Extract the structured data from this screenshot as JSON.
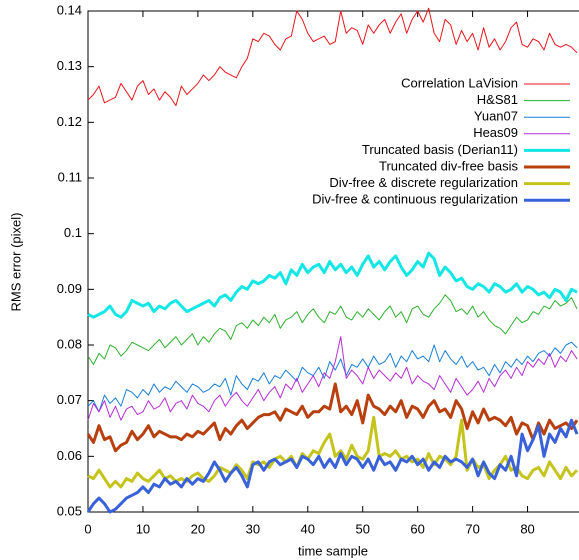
{
  "chart_data": {
    "type": "line",
    "xlabel": "time sample",
    "ylabel": "RMS error (pixel)",
    "xlim": [
      0,
      89
    ],
    "ylim": [
      0.05,
      0.14
    ],
    "xticks": [
      0,
      10,
      20,
      30,
      40,
      50,
      60,
      70,
      80
    ],
    "yticks": [
      0.05,
      0.06,
      0.07,
      0.08,
      0.09,
      0.1,
      0.11,
      0.12,
      0.13,
      0.14
    ],
    "legend": "upper right",
    "x": [
      0,
      1,
      2,
      3,
      4,
      5,
      6,
      7,
      8,
      9,
      10,
      11,
      12,
      13,
      14,
      15,
      16,
      17,
      18,
      19,
      20,
      21,
      22,
      23,
      24,
      25,
      26,
      27,
      28,
      29,
      30,
      31,
      32,
      33,
      34,
      35,
      36,
      37,
      38,
      39,
      40,
      41,
      42,
      43,
      44,
      45,
      46,
      47,
      48,
      49,
      50,
      51,
      52,
      53,
      54,
      55,
      56,
      57,
      58,
      59,
      60,
      61,
      62,
      63,
      64,
      65,
      66,
      67,
      68,
      69,
      70,
      71,
      72,
      73,
      74,
      75,
      76,
      77,
      78,
      79,
      80,
      81,
      82,
      83,
      84,
      85,
      86,
      87,
      88,
      89
    ],
    "series": [
      {
        "name": "Correlation LaVision",
        "color": "#e8161b",
        "values": [
          0.124,
          0.125,
          0.1265,
          0.1235,
          0.124,
          0.1245,
          0.127,
          0.1255,
          0.124,
          0.1265,
          0.1275,
          0.125,
          0.126,
          0.124,
          0.1255,
          0.1245,
          0.123,
          0.1265,
          0.125,
          0.126,
          0.127,
          0.1285,
          0.1275,
          0.1285,
          0.13,
          0.129,
          0.1285,
          0.128,
          0.13,
          0.1315,
          0.135,
          0.1345,
          0.136,
          0.1355,
          0.134,
          0.133,
          0.135,
          0.1355,
          0.14,
          0.1385,
          0.136,
          0.1345,
          0.135,
          0.1355,
          0.134,
          0.1345,
          0.14,
          0.136,
          0.137,
          0.1365,
          0.134,
          0.1375,
          0.136,
          0.1375,
          0.1385,
          0.136,
          0.138,
          0.1395,
          0.136,
          0.1385,
          0.14,
          0.138,
          0.1405,
          0.136,
          0.1345,
          0.1385,
          0.1375,
          0.134,
          0.1365,
          0.1345,
          0.136,
          0.133,
          0.137,
          0.1335,
          0.135,
          0.133,
          0.1345,
          0.137,
          0.138,
          0.134,
          0.1335,
          0.135,
          0.1345,
          0.133,
          0.136,
          0.134,
          0.1335,
          0.134,
          0.1335,
          0.1325
        ]
      },
      {
        "name": "H&S81",
        "color": "#2fb12f",
        "values": [
          0.078,
          0.0765,
          0.0785,
          0.0775,
          0.08,
          0.0795,
          0.078,
          0.079,
          0.0805,
          0.08,
          0.0795,
          0.079,
          0.08,
          0.081,
          0.0795,
          0.0805,
          0.0815,
          0.08,
          0.081,
          0.082,
          0.08,
          0.0815,
          0.0805,
          0.082,
          0.083,
          0.0825,
          0.081,
          0.0835,
          0.084,
          0.083,
          0.0845,
          0.0835,
          0.085,
          0.084,
          0.0855,
          0.083,
          0.0845,
          0.085,
          0.086,
          0.084,
          0.0855,
          0.0865,
          0.085,
          0.084,
          0.086,
          0.0855,
          0.087,
          0.085,
          0.0845,
          0.086,
          0.085,
          0.0865,
          0.0855,
          0.0845,
          0.086,
          0.087,
          0.085,
          0.086,
          0.084,
          0.0865,
          0.087,
          0.0855,
          0.085,
          0.0865,
          0.0875,
          0.089,
          0.088,
          0.086,
          0.0865,
          0.0855,
          0.087,
          0.085,
          0.086,
          0.0845,
          0.0835,
          0.083,
          0.082,
          0.0835,
          0.085,
          0.084,
          0.0845,
          0.086,
          0.0855,
          0.087,
          0.0865,
          0.088,
          0.087,
          0.0875,
          0.0885,
          0.0865
        ]
      },
      {
        "name": "Yuan07",
        "color": "#1a7fd6",
        "values": [
          0.069,
          0.07,
          0.068,
          0.071,
          0.0695,
          0.0705,
          0.069,
          0.072,
          0.0715,
          0.0705,
          0.072,
          0.071,
          0.073,
          0.0715,
          0.0725,
          0.072,
          0.0735,
          0.0725,
          0.0715,
          0.073,
          0.0725,
          0.0715,
          0.072,
          0.073,
          0.0725,
          0.074,
          0.071,
          0.0745,
          0.073,
          0.072,
          0.074,
          0.0735,
          0.075,
          0.073,
          0.0745,
          0.074,
          0.0755,
          0.0745,
          0.0735,
          0.076,
          0.075,
          0.0745,
          0.076,
          0.074,
          0.077,
          0.0755,
          0.0775,
          0.0745,
          0.0765,
          0.076,
          0.0775,
          0.076,
          0.078,
          0.0765,
          0.077,
          0.0785,
          0.076,
          0.078,
          0.077,
          0.079,
          0.0775,
          0.078,
          0.077,
          0.08,
          0.077,
          0.079,
          0.0775,
          0.0765,
          0.078,
          0.076,
          0.077,
          0.0755,
          0.076,
          0.0745,
          0.0765,
          0.075,
          0.077,
          0.076,
          0.0775,
          0.0765,
          0.078,
          0.077,
          0.0785,
          0.079,
          0.078,
          0.0795,
          0.0785,
          0.08,
          0.0805,
          0.0795
        ]
      },
      {
        "name": "Heas09",
        "color": "#b62ed6",
        "values": [
          0.0665,
          0.0695,
          0.068,
          0.07,
          0.067,
          0.069,
          0.0665,
          0.0685,
          0.069,
          0.0675,
          0.068,
          0.07,
          0.0685,
          0.069,
          0.0705,
          0.068,
          0.0695,
          0.07,
          0.0685,
          0.071,
          0.0695,
          0.069,
          0.068,
          0.07,
          0.071,
          0.069,
          0.0705,
          0.0715,
          0.07,
          0.069,
          0.0705,
          0.072,
          0.07,
          0.0715,
          0.0725,
          0.0705,
          0.073,
          0.072,
          0.074,
          0.0715,
          0.073,
          0.0745,
          0.0725,
          0.075,
          0.074,
          0.077,
          0.0815,
          0.074,
          0.0755,
          0.0745,
          0.073,
          0.076,
          0.074,
          0.0755,
          0.0745,
          0.0735,
          0.075,
          0.074,
          0.076,
          0.073,
          0.0745,
          0.0735,
          0.073,
          0.072,
          0.0745,
          0.073,
          0.0715,
          0.074,
          0.0725,
          0.071,
          0.072,
          0.0735,
          0.0715,
          0.074,
          0.0725,
          0.0745,
          0.0755,
          0.074,
          0.076,
          0.0745,
          0.077,
          0.076,
          0.0775,
          0.0765,
          0.0785,
          0.076,
          0.078,
          0.077,
          0.079,
          0.0775
        ]
      },
      {
        "name": "Truncated basis (Derian11)",
        "color": "#14e6e6",
        "values": [
          0.0855,
          0.085,
          0.0855,
          0.086,
          0.087,
          0.0855,
          0.085,
          0.086,
          0.088,
          0.0875,
          0.087,
          0.0875,
          0.086,
          0.087,
          0.0865,
          0.0875,
          0.088,
          0.087,
          0.086,
          0.0865,
          0.087,
          0.0875,
          0.088,
          0.087,
          0.0885,
          0.089,
          0.088,
          0.0895,
          0.0905,
          0.09,
          0.0915,
          0.091,
          0.0915,
          0.0925,
          0.092,
          0.093,
          0.091,
          0.0935,
          0.0925,
          0.0945,
          0.093,
          0.094,
          0.0945,
          0.093,
          0.095,
          0.0935,
          0.0945,
          0.093,
          0.094,
          0.0925,
          0.0945,
          0.096,
          0.094,
          0.095,
          0.0935,
          0.095,
          0.096,
          0.094,
          0.0925,
          0.0935,
          0.095,
          0.094,
          0.0965,
          0.0955,
          0.0925,
          0.094,
          0.093,
          0.0915,
          0.092,
          0.0905,
          0.09,
          0.091,
          0.0905,
          0.0895,
          0.091,
          0.0905,
          0.0895,
          0.09,
          0.091,
          0.0895,
          0.0905,
          0.09,
          0.089,
          0.0895,
          0.0885,
          0.09,
          0.0895,
          0.088,
          0.09,
          0.0895
        ]
      },
      {
        "name": "Truncated div-free basis",
        "color": "#b8400e",
        "values": [
          0.064,
          0.0625,
          0.0655,
          0.063,
          0.0635,
          0.061,
          0.062,
          0.0625,
          0.0645,
          0.063,
          0.064,
          0.0655,
          0.0635,
          0.0645,
          0.064,
          0.0635,
          0.0635,
          0.063,
          0.064,
          0.0635,
          0.0645,
          0.064,
          0.065,
          0.066,
          0.063,
          0.065,
          0.064,
          0.0655,
          0.0665,
          0.065,
          0.066,
          0.067,
          0.0675,
          0.0675,
          0.068,
          0.0665,
          0.0685,
          0.068,
          0.0675,
          0.069,
          0.067,
          0.068,
          0.068,
          0.069,
          0.0685,
          0.073,
          0.068,
          0.069,
          0.0675,
          0.07,
          0.066,
          0.071,
          0.069,
          0.0685,
          0.0675,
          0.069,
          0.068,
          0.07,
          0.067,
          0.069,
          0.0685,
          0.067,
          0.069,
          0.07,
          0.068,
          0.0685,
          0.067,
          0.07,
          0.0685,
          0.065,
          0.068,
          0.066,
          0.0685,
          0.0665,
          0.067,
          0.0665,
          0.0655,
          0.067,
          0.064,
          0.066,
          0.0655,
          0.063,
          0.066,
          0.064,
          0.0665,
          0.065,
          0.0655,
          0.066,
          0.065,
          0.0665
        ]
      },
      {
        "name": "Div-free & discrete regularization",
        "color": "#c4c41c",
        "values": [
          0.0565,
          0.056,
          0.0575,
          0.056,
          0.0545,
          0.0555,
          0.0545,
          0.056,
          0.0555,
          0.057,
          0.056,
          0.0555,
          0.0565,
          0.0575,
          0.056,
          0.0565,
          0.0555,
          0.056,
          0.0555,
          0.0565,
          0.057,
          0.056,
          0.0555,
          0.0565,
          0.058,
          0.0575,
          0.057,
          0.0585,
          0.0575,
          0.056,
          0.059,
          0.0585,
          0.059,
          0.058,
          0.0595,
          0.06,
          0.059,
          0.06,
          0.058,
          0.0605,
          0.0595,
          0.061,
          0.0605,
          0.0625,
          0.064,
          0.06,
          0.061,
          0.0595,
          0.062,
          0.06,
          0.0595,
          0.061,
          0.067,
          0.06,
          0.0605,
          0.06,
          0.061,
          0.0595,
          0.06,
          0.059,
          0.0595,
          0.058,
          0.0605,
          0.0585,
          0.06,
          0.0595,
          0.0585,
          0.06,
          0.0665,
          0.0575,
          0.0595,
          0.058,
          0.0585,
          0.056,
          0.0575,
          0.0585,
          0.06,
          0.0575,
          0.058,
          0.0565,
          0.056,
          0.0575,
          0.058,
          0.0565,
          0.059,
          0.0575,
          0.056,
          0.058,
          0.0565,
          0.0575
        ]
      },
      {
        "name": "Div-free & continuous regularization",
        "color": "#3a62d8",
        "values": [
          0.05,
          0.0515,
          0.0525,
          0.0515,
          0.05,
          0.0505,
          0.0515,
          0.0525,
          0.053,
          0.0535,
          0.0545,
          0.0535,
          0.055,
          0.0545,
          0.056,
          0.055,
          0.0555,
          0.0545,
          0.056,
          0.055,
          0.056,
          0.0555,
          0.057,
          0.059,
          0.0575,
          0.0555,
          0.057,
          0.058,
          0.0565,
          0.0545,
          0.0585,
          0.059,
          0.0575,
          0.059,
          0.0595,
          0.0585,
          0.059,
          0.0595,
          0.058,
          0.06,
          0.0595,
          0.0585,
          0.06,
          0.058,
          0.0595,
          0.058,
          0.0605,
          0.0585,
          0.06,
          0.0595,
          0.058,
          0.0595,
          0.0575,
          0.06,
          0.0585,
          0.059,
          0.0575,
          0.0595,
          0.059,
          0.06,
          0.0585,
          0.0595,
          0.0575,
          0.059,
          0.058,
          0.06,
          0.059,
          0.0595,
          0.059,
          0.058,
          0.0595,
          0.0565,
          0.059,
          0.057,
          0.056,
          0.0585,
          0.0575,
          0.06,
          0.0565,
          0.064,
          0.061,
          0.063,
          0.0655,
          0.06,
          0.064,
          0.0625,
          0.065,
          0.0635,
          0.0665,
          0.064
        ]
      }
    ]
  }
}
